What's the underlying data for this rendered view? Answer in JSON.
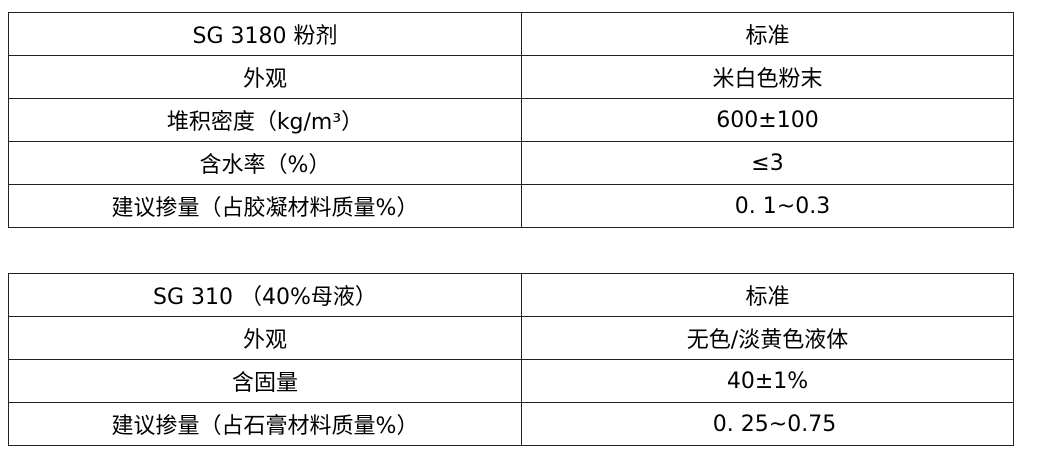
{
  "table1": {
    "header": [
      "SG 3180 粉剂",
      "标准"
    ],
    "rows": [
      [
        "外观",
        "米白色粉末"
      ],
      [
        "堆积密度（kg/m³）",
        "600±100"
      ],
      [
        "含水率（%）",
        "≤3"
      ],
      [
        "建议掺量（占胶凝材料质量%）",
        "0. 1~0.3"
      ]
    ]
  },
  "table2": {
    "header": [
      "SG 310 （40%母液）",
      "标准"
    ],
    "rows": [
      [
        "外观",
        "无色/淡黄色液体"
      ],
      [
        "含固量",
        "40±1%"
      ],
      [
        "建议掺量（占石膏材料质量%）",
        "0. 25~0.75"
      ]
    ]
  }
}
